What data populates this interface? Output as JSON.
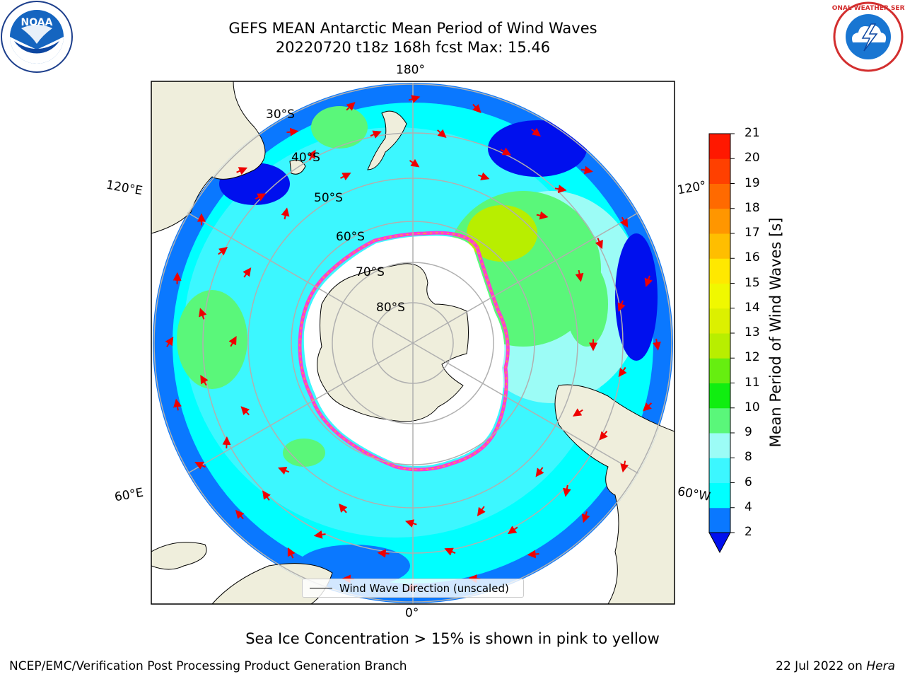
{
  "title": {
    "line1": "GEFS MEAN Antarctic Mean Period of Wind Waves",
    "line2": "20220720 t18z 168h fcst   Max: 15.46"
  },
  "logos": {
    "left": "noaa-logo",
    "right": "nws-logo",
    "left_text": "NOAA",
    "right_text": "NATIONAL WEATHER SERVICE"
  },
  "map": {
    "projection": "south-polar-stereographic",
    "longitude_labels": [
      "180°",
      "120°E",
      "120°",
      "60°E",
      "60°W",
      "0°"
    ],
    "latitude_labels": [
      "30°S",
      "40°S",
      "50°S",
      "60°S",
      "70°S",
      "80°S"
    ],
    "colors": {
      "land": "#efeedc",
      "ice": "#ffffff",
      "ice_edge_pink": "#ff3fd0",
      "ice_edge_yellow": "#ffb020",
      "arrows": "#ee0000",
      "grid": "#b0b0b0"
    },
    "legend": "Wind Wave Direction (unscaled)"
  },
  "colorbar": {
    "label": "Mean Period of Wind Waves [s]",
    "ticks": [
      "2",
      "4",
      "6",
      "8",
      "9",
      "10",
      "11",
      "12",
      "13",
      "14",
      "15",
      "16",
      "17",
      "18",
      "19",
      "20",
      "21"
    ],
    "colors": [
      "#0a78ff",
      "#00ffff",
      "#3cf7ff",
      "#9cfcf6",
      "#5af77a",
      "#10ee10",
      "#66ee10",
      "#b8ee00",
      "#dcf000",
      "#f0f800",
      "#ffe800",
      "#ffbe00",
      "#ff9600",
      "#ff6a00",
      "#ff4000",
      "#ff1800"
    ],
    "under_color": "#0010ee"
  },
  "note": "Sea Ice Concentration > 15% is shown in pink to yellow",
  "footer": {
    "left": "NCEP/EMC/Verification Post Processing Product Generation Branch",
    "date": "22 Jul 2022 on",
    "machine": "Hera"
  }
}
